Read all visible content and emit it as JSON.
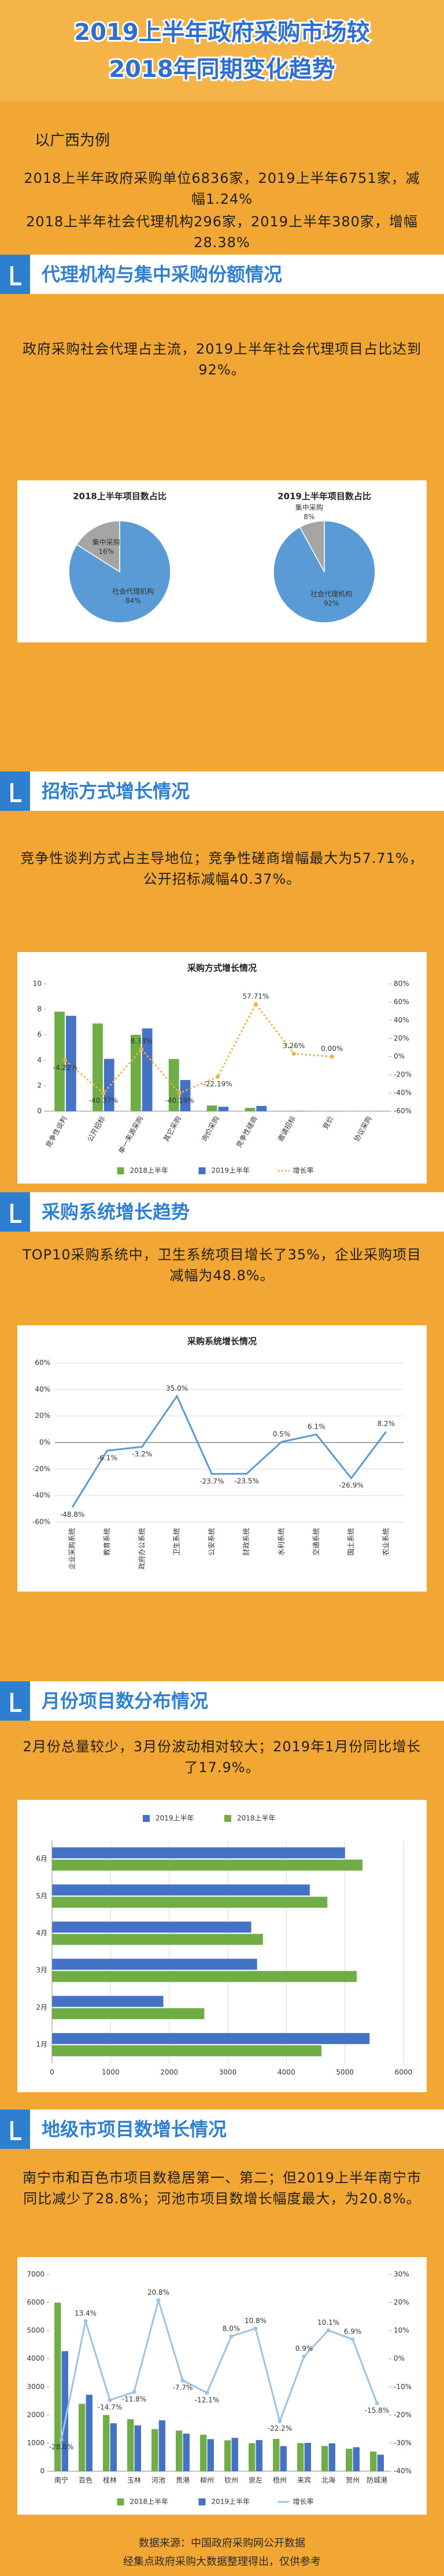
{
  "header": {
    "title": [
      "2019上半年政府采购市场较",
      "2018年同期变化趋势"
    ]
  },
  "intro": {
    "label": "以广西为例",
    "paragraphs": [
      "2018上半年政府采购单位6836家，2019上半年6751家，减幅1.24%",
      "2018上半年社会代理机构296家，2019上半年380家，增幅28.38%"
    ]
  },
  "sections": [
    {
      "title": "代理机构与集中采购份额情况",
      "text": "政府采购社会代理占主流，2019上半年社会代理项目占比达到92%。"
    },
    {
      "title": "招标方式增长情况",
      "text": "竞争性谈判方式占主导地位；竞争性磋商增幅最大为57.71%，公开招标减幅40.37%。"
    },
    {
      "title": "采购系统增长趋势",
      "text": "TOP10采购系统中，卫生系统项目增长了35%，企业采购项目减幅为48.8%。"
    },
    {
      "title": "月份项目数分布情况",
      "text": "2月份总量较少，3月份波动相对较大；2019年1月份同比增长了17.9%。"
    },
    {
      "title": "地级市项目数增长情况",
      "text": "南宁市和百色市项目数稳居第一、第二；但2019上半年南宁市同比减少了28.8%；河池市项目数增长幅度最大，为20.8%。"
    }
  ],
  "footer": [
    "数据来源：中国政府采购网公开数据",
    "经集点政府采购大数据整理得出，仅供参考"
  ],
  "chart_data": [
    {
      "type": "pie",
      "title": "2018上半年项目数占比",
      "categories": [
        "集中采购",
        "社会代理机构"
      ],
      "values": [
        16,
        84
      ],
      "value_labels": [
        "16%",
        "84%"
      ],
      "colors": [
        "#a5a5a5",
        "#5b9bd5"
      ]
    },
    {
      "type": "pie",
      "title": "2019上半年项目数占比",
      "categories": [
        "集中采购",
        "社会代理机构"
      ],
      "values": [
        8,
        92
      ],
      "value_labels": [
        "8%",
        "92%"
      ],
      "colors": [
        "#a5a5a5",
        "#5b9bd5"
      ]
    },
    {
      "type": "bar",
      "title": "采购方式增长情况",
      "categories": [
        "竞争性谈判",
        "公开招标",
        "单一来源采购",
        "其它采购",
        "询价采购",
        "竞争性磋商",
        "邀请招标",
        "竞价",
        "协议采购"
      ],
      "series": [
        {
          "name": "2018上半年",
          "color": "#70ad47",
          "values": [
            7.82,
            6.89,
            6.0,
            4.1,
            0.45,
            0.26,
            0.03,
            0.02,
            0.01
          ]
        },
        {
          "name": "2019上半年",
          "color": "#4472c4",
          "values": [
            7.49,
            4.11,
            6.5,
            2.45,
            0.35,
            0.41,
            0.03,
            0.02,
            0
          ]
        },
        {
          "name": "增长率",
          "type": "line",
          "axis": "y2",
          "color": "#f5b041",
          "dash": "dotted",
          "values": [
            -4.22,
            -40.37,
            8.33,
            -40.19,
            -22.19,
            57.71,
            3.26,
            0,
            null
          ],
          "value_labels": [
            "-4.22%",
            "-40.37%",
            "8.33%",
            "-40.19%",
            "-22.19%",
            "57.71%",
            "3.26%",
            "0.00%",
            null
          ]
        }
      ],
      "ylim": [
        0,
        10
      ],
      "yticks": [
        0,
        2,
        4,
        6,
        8,
        10
      ],
      "y2lim": [
        -60,
        80
      ],
      "y2ticks": [
        {
          "value": -60,
          "label": "-60%"
        },
        {
          "value": -40,
          "label": "-40%"
        },
        {
          "value": -20,
          "label": "-20%"
        },
        {
          "value": 0,
          "label": "0%"
        },
        {
          "value": 20,
          "label": "20%"
        },
        {
          "value": 40,
          "label": "40%"
        },
        {
          "value": 60,
          "label": "60%"
        },
        {
          "value": 80,
          "label": "80%"
        }
      ],
      "grid": false,
      "legend": "bottom"
    },
    {
      "type": "line",
      "title": "采购系统增长情况",
      "color": "#5b9bd5",
      "categories": [
        "企业采购系统",
        "教育系统",
        "政府办公系统",
        "卫生系统",
        "公安系统",
        "财政系统",
        "水利系统",
        "交通系统",
        "国土系统",
        "农业系统"
      ],
      "values": [
        -48.8,
        -6.1,
        -3.2,
        35.0,
        -23.7,
        -23.5,
        0.5,
        6.1,
        -26.9,
        8.2
      ],
      "value_labels": [
        "-48.8%",
        "-6.1%",
        "-3.2%",
        "35.0%",
        "-23.7%",
        "-23.5%",
        "0.5%",
        "6.1%",
        "-26.9%",
        "8.2%"
      ],
      "ylim": [
        -60,
        60
      ],
      "yticks": [
        {
          "value": -60,
          "label": "-60%"
        },
        {
          "value": -40,
          "label": "-40%"
        },
        {
          "value": -20,
          "label": "-20%"
        },
        {
          "value": 0,
          "label": "0%"
        },
        {
          "value": 20,
          "label": "20%"
        },
        {
          "value": 40,
          "label": "40%"
        },
        {
          "value": 60,
          "label": "60%"
        }
      ],
      "grid": true
    },
    {
      "type": "barh",
      "categories": [
        "1月",
        "2月",
        "3月",
        "4月",
        "5月",
        "6月"
      ],
      "series": [
        {
          "name": "2019上半年",
          "color": "#4472c4",
          "values": [
            5420,
            1900,
            3500,
            3400,
            4400,
            5000
          ]
        },
        {
          "name": "2018上半年",
          "color": "#70ad47",
          "values": [
            4600,
            2600,
            5200,
            3600,
            4700,
            5300
          ]
        }
      ],
      "xlim": [
        0,
        6000
      ],
      "xticks": [
        0,
        1000,
        2000,
        3000,
        4000,
        5000,
        6000
      ],
      "grid": true,
      "legend": "top"
    },
    {
      "type": "bar",
      "categories": [
        "南宁",
        "百色",
        "桂林",
        "玉林",
        "河池",
        "贵港",
        "柳州",
        "钦州",
        "崇左",
        "梧州",
        "来宾",
        "北海",
        "贺州",
        "防城港"
      ],
      "series": [
        {
          "name": "2018上半年",
          "color": "#70ad47",
          "values": [
            6000,
            2400,
            2000,
            1850,
            1500,
            1450,
            1300,
            1100,
            1000,
            1150,
            1000,
            900,
            800,
            700
          ]
        },
        {
          "name": "2019上半年",
          "color": "#4472c4",
          "values": [
            4272,
            2720,
            1706,
            1632,
            1812,
            1338,
            1143,
            1188,
            1108,
            895,
            1009,
            991,
            855,
            589
          ]
        },
        {
          "name": "增长率",
          "type": "line",
          "axis": "y2",
          "color": "#9dc3e6",
          "values": [
            -28.8,
            13.4,
            -14.7,
            -11.8,
            20.8,
            -7.7,
            -12.1,
            8.0,
            10.8,
            -22.2,
            0.9,
            10.1,
            6.9,
            -15.8
          ],
          "value_labels": [
            "-28.8%",
            "13.4%",
            "-14.7%",
            "-11.8%",
            "20.8%",
            "-7.7%",
            "-12.1%",
            "8.0%",
            "10.8%",
            "-22.2%",
            "0.9%",
            "10.1%",
            "6.9%",
            "-15.8%"
          ]
        }
      ],
      "ylim": [
        0,
        7000
      ],
      "yticks": [
        0,
        1000,
        2000,
        3000,
        4000,
        5000,
        6000,
        7000
      ],
      "y2lim": [
        -40,
        30
      ],
      "y2ticks": [
        {
          "value": -40,
          "label": "-40%"
        },
        {
          "value": -30,
          "label": "-30%"
        },
        {
          "value": -20,
          "label": "-20%"
        },
        {
          "value": -10,
          "label": "-10%"
        },
        {
          "value": 0,
          "label": "0%"
        },
        {
          "value": 10,
          "label": "10%"
        },
        {
          "value": 20,
          "label": "20%"
        },
        {
          "value": 30,
          "label": "30%"
        }
      ],
      "grid": false,
      "legend": "bottom"
    }
  ]
}
